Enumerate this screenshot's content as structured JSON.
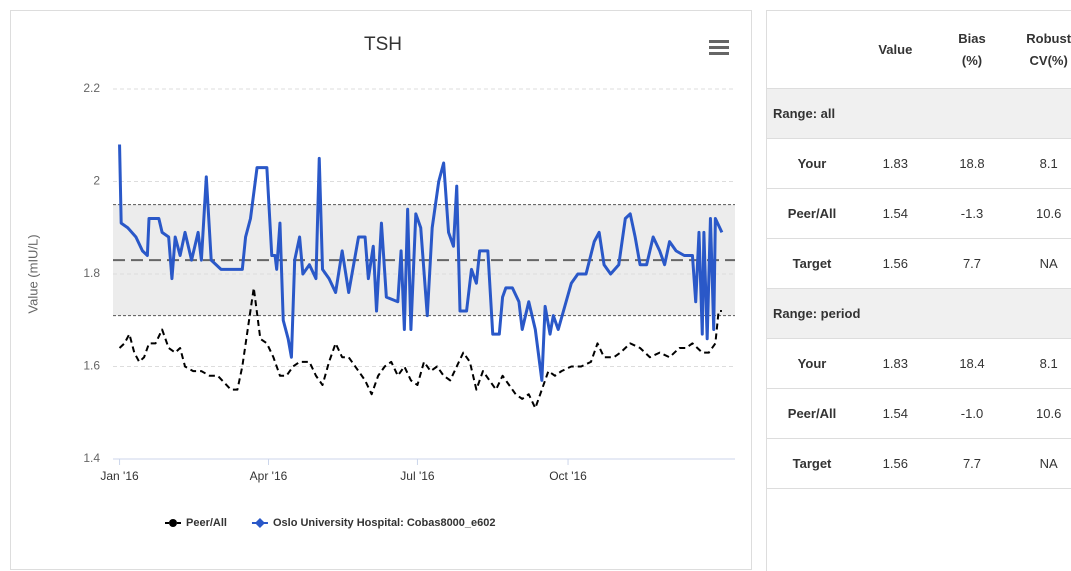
{
  "chart_data": {
    "type": "line",
    "title": "TSH",
    "y_label": "Value (mIU/L)",
    "xlim": [
      -4,
      376
    ],
    "xticks": [
      {
        "value": 0,
        "label": "Jan '16"
      },
      {
        "value": 91,
        "label": "Apr '16"
      },
      {
        "value": 182,
        "label": "Jul '16"
      },
      {
        "value": 274,
        "label": "Oct '16"
      }
    ],
    "ylim": [
      1.4,
      2.2
    ],
    "yticks": [
      1.4,
      1.6,
      1.8,
      2,
      2.2
    ],
    "grid": true,
    "band": {
      "from": 1.71,
      "to": 1.95,
      "color": "#ececec"
    },
    "reference_line": 1.83,
    "legend": "bottom",
    "series": [
      {
        "name": "Peer/All",
        "color": "#000000",
        "line_style": "dashed",
        "marker": "circle",
        "x": [
          0,
          3,
          6,
          9,
          12,
          15,
          18,
          22,
          26,
          30,
          34,
          37,
          40,
          45,
          50,
          55,
          60,
          68,
          72,
          75,
          82,
          86,
          90,
          94,
          98,
          102,
          106,
          110,
          116,
          120,
          124,
          128,
          132,
          136,
          140,
          146,
          150,
          154,
          158,
          162,
          166,
          170,
          174,
          178,
          182,
          186,
          190,
          194,
          198,
          202,
          206,
          210,
          214,
          218,
          222,
          226,
          230,
          234,
          238,
          242,
          246,
          250,
          254,
          258,
          262,
          266,
          270,
          276,
          282,
          288,
          292,
          296,
          302,
          306,
          312,
          318,
          324,
          330,
          336,
          342,
          346,
          350,
          356,
          360,
          364,
          366,
          368
        ],
        "values": [
          1.64,
          1.65,
          1.67,
          1.63,
          1.61,
          1.62,
          1.65,
          1.65,
          1.68,
          1.64,
          1.63,
          1.64,
          1.6,
          1.59,
          1.59,
          1.58,
          1.58,
          1.55,
          1.55,
          1.6,
          1.77,
          1.66,
          1.65,
          1.62,
          1.58,
          1.58,
          1.6,
          1.61,
          1.61,
          1.58,
          1.56,
          1.61,
          1.65,
          1.62,
          1.62,
          1.59,
          1.57,
          1.54,
          1.58,
          1.6,
          1.61,
          1.58,
          1.6,
          1.57,
          1.56,
          1.61,
          1.59,
          1.6,
          1.58,
          1.57,
          1.6,
          1.63,
          1.61,
          1.55,
          1.59,
          1.57,
          1.55,
          1.58,
          1.56,
          1.54,
          1.53,
          1.54,
          1.51,
          1.55,
          1.59,
          1.58,
          1.59,
          1.6,
          1.6,
          1.61,
          1.65,
          1.62,
          1.62,
          1.63,
          1.65,
          1.64,
          1.62,
          1.63,
          1.62,
          1.64,
          1.64,
          1.65,
          1.63,
          1.63,
          1.65,
          1.72,
          1.72
        ]
      },
      {
        "name": "Oslo University Hospital: Cobas8000_e602",
        "color": "#2a58c8",
        "line_style": "solid",
        "marker": "diamond",
        "x": [
          0,
          1,
          5,
          10,
          14,
          17,
          18,
          24,
          26,
          30,
          32,
          34,
          37,
          40,
          44,
          48,
          50,
          53,
          56,
          59,
          62,
          75,
          77,
          80,
          84,
          90,
          93,
          95,
          96,
          98,
          100,
          103,
          105,
          107,
          110,
          112,
          116,
          120,
          122,
          124,
          128,
          132,
          136,
          140,
          146,
          150,
          152,
          155,
          157,
          160,
          163,
          170,
          172,
          174,
          176,
          178,
          181,
          184,
          188,
          191,
          195,
          198,
          201,
          204,
          206,
          208,
          212,
          215,
          218,
          220,
          225,
          228,
          232,
          234,
          236,
          240,
          244,
          246,
          250,
          254,
          258,
          260,
          263,
          265,
          268,
          272,
          276,
          280,
          285,
          290,
          293,
          296,
          300,
          305,
          309,
          312,
          315,
          318,
          322,
          326,
          330,
          333,
          336,
          340,
          345,
          350,
          352,
          354,
          356,
          357,
          359,
          361,
          363,
          364,
          368
        ],
        "values": [
          2.08,
          1.91,
          1.9,
          1.88,
          1.85,
          1.84,
          1.92,
          1.92,
          1.89,
          1.88,
          1.79,
          1.88,
          1.84,
          1.89,
          1.83,
          1.89,
          1.83,
          2.01,
          1.83,
          1.82,
          1.81,
          1.81,
          1.88,
          1.92,
          2.03,
          2.03,
          1.84,
          1.84,
          1.81,
          1.91,
          1.7,
          1.66,
          1.62,
          1.83,
          1.88,
          1.8,
          1.82,
          1.79,
          2.05,
          1.81,
          1.79,
          1.76,
          1.85,
          1.76,
          1.88,
          1.88,
          1.79,
          1.86,
          1.72,
          1.91,
          1.75,
          1.74,
          1.85,
          1.68,
          1.94,
          1.68,
          1.93,
          1.9,
          1.71,
          1.9,
          2.0,
          2.04,
          1.89,
          1.86,
          1.99,
          1.72,
          1.72,
          1.81,
          1.78,
          1.85,
          1.85,
          1.67,
          1.67,
          1.75,
          1.77,
          1.77,
          1.74,
          1.68,
          1.74,
          1.68,
          1.57,
          1.73,
          1.67,
          1.71,
          1.68,
          1.73,
          1.78,
          1.8,
          1.8,
          1.87,
          1.89,
          1.82,
          1.8,
          1.82,
          1.92,
          1.93,
          1.88,
          1.82,
          1.82,
          1.88,
          1.85,
          1.82,
          1.87,
          1.85,
          1.84,
          1.84,
          1.74,
          1.89,
          1.67,
          1.89,
          1.66,
          1.92,
          1.68,
          1.92,
          1.89
        ]
      }
    ]
  },
  "table": {
    "columns": [
      "Value",
      "Bias (%)",
      "Robust CV(%)"
    ],
    "sections": [
      {
        "title": "Range: all",
        "rows": [
          {
            "label": "Your",
            "cells": [
              "1.83",
              "18.8",
              "8.1"
            ]
          },
          {
            "label": "Peer/All",
            "cells": [
              "1.54",
              "-1.3",
              "10.6"
            ]
          },
          {
            "label": "Target",
            "cells": [
              "1.56",
              "7.7",
              "NA"
            ]
          }
        ]
      },
      {
        "title": "Range: period",
        "rows": [
          {
            "label": "Your",
            "cells": [
              "1.83",
              "18.4",
              "8.1"
            ]
          },
          {
            "label": "Peer/All",
            "cells": [
              "1.54",
              "-1.0",
              "10.6"
            ]
          },
          {
            "label": "Target",
            "cells": [
              "1.56",
              "7.7",
              "NA"
            ]
          }
        ]
      }
    ]
  }
}
